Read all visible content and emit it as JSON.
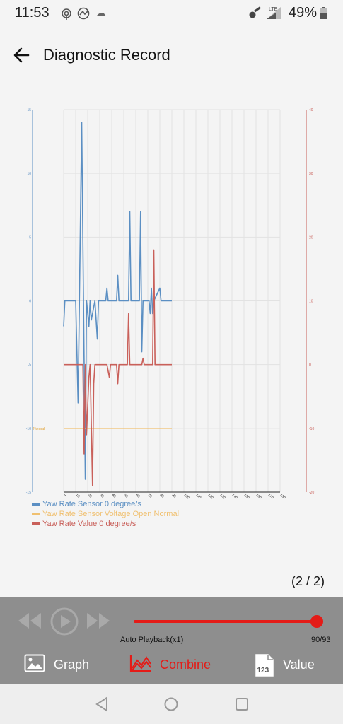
{
  "status_bar": {
    "time": "11:53",
    "battery": "49%"
  },
  "header": {
    "title": "Diagnostic Record"
  },
  "chart_data": {
    "type": "line",
    "title": "",
    "xlabel": "",
    "ylabel": "",
    "x_ticks": [
      "0",
      "10",
      "20",
      "30",
      "40",
      "50",
      "60",
      "70",
      "80",
      "90",
      "100",
      "110",
      "120",
      "130",
      "140",
      "150",
      "160",
      "170",
      "180"
    ],
    "y_left_ticks": [
      "15",
      "10",
      "5",
      "0",
      "-5",
      "-10",
      "-15"
    ],
    "y_right_ticks": [
      "40",
      "30",
      "20",
      "10",
      "0",
      "-10",
      "-20"
    ],
    "ylim_left": [
      -15,
      15
    ],
    "ylim_right": [
      -20,
      40
    ],
    "xlim": [
      0,
      180
    ],
    "grid": true,
    "legend_position": "bottom-left",
    "annotations": [
      "Normal"
    ],
    "series": [
      {
        "name": "Yaw Rate Sensor 0 degree/s",
        "color": "#5b8fc3",
        "axis": "left",
        "points": [
          [
            0,
            -2
          ],
          [
            1,
            0
          ],
          [
            10,
            0
          ],
          [
            12,
            -8
          ],
          [
            15,
            14
          ],
          [
            18,
            -14
          ],
          [
            19,
            0
          ],
          [
            21,
            -2
          ],
          [
            22,
            0
          ],
          [
            23,
            -1.5
          ],
          [
            26,
            0
          ],
          [
            28,
            -3
          ],
          [
            29,
            0
          ],
          [
            35,
            0
          ],
          [
            36,
            1
          ],
          [
            37,
            0
          ],
          [
            44,
            0
          ],
          [
            45,
            2
          ],
          [
            46,
            0
          ],
          [
            54,
            0
          ],
          [
            55,
            7
          ],
          [
            56,
            0
          ],
          [
            63,
            0
          ],
          [
            64,
            7
          ],
          [
            65,
            -4
          ],
          [
            66,
            0
          ],
          [
            71,
            0
          ],
          [
            72,
            -1
          ],
          [
            73,
            1
          ],
          [
            74,
            -1
          ],
          [
            75,
            0
          ],
          [
            80,
            1
          ],
          [
            81,
            0
          ],
          [
            90,
            0
          ]
        ]
      },
      {
        "name": "Yaw Rate Sensor Voltage Open Normal",
        "color": "#f0c070",
        "axis": "left",
        "points": [
          [
            0,
            -10
          ],
          [
            90,
            -10
          ]
        ]
      },
      {
        "name": "Yaw Rate Value 0 degree/s",
        "color": "#c9605a",
        "axis": "right",
        "points": [
          [
            0,
            0
          ],
          [
            16,
            0
          ],
          [
            17,
            -14
          ],
          [
            18,
            0
          ],
          [
            19,
            -11
          ],
          [
            21,
            -2
          ],
          [
            22,
            0
          ],
          [
            24,
            -19
          ],
          [
            25,
            -3
          ],
          [
            26,
            0
          ],
          [
            36,
            0
          ],
          [
            38,
            -2
          ],
          [
            39,
            0
          ],
          [
            44,
            0
          ],
          [
            45,
            -3
          ],
          [
            46,
            0
          ],
          [
            53,
            0
          ],
          [
            54,
            8
          ],
          [
            55,
            0
          ],
          [
            65,
            0
          ],
          [
            66,
            1
          ],
          [
            67,
            0
          ],
          [
            74,
            0
          ],
          [
            75,
            18
          ],
          [
            76,
            0
          ],
          [
            90,
            0
          ]
        ]
      }
    ]
  },
  "pager": {
    "label": "(2 / 2)"
  },
  "player": {
    "autoplay_label": "Auto Playback(x1)",
    "frame_counter": "90/93",
    "progress": 0.968
  },
  "tabs": [
    {
      "label": "Graph",
      "icon": "image-icon",
      "active": false
    },
    {
      "label": "Combine",
      "icon": "line-chart-icon",
      "active": true
    },
    {
      "label": "Value",
      "icon": "numeric-document-icon",
      "active": false
    }
  ],
  "colors": {
    "accent": "#e41b17",
    "player_bg": "#8e8e8e"
  }
}
